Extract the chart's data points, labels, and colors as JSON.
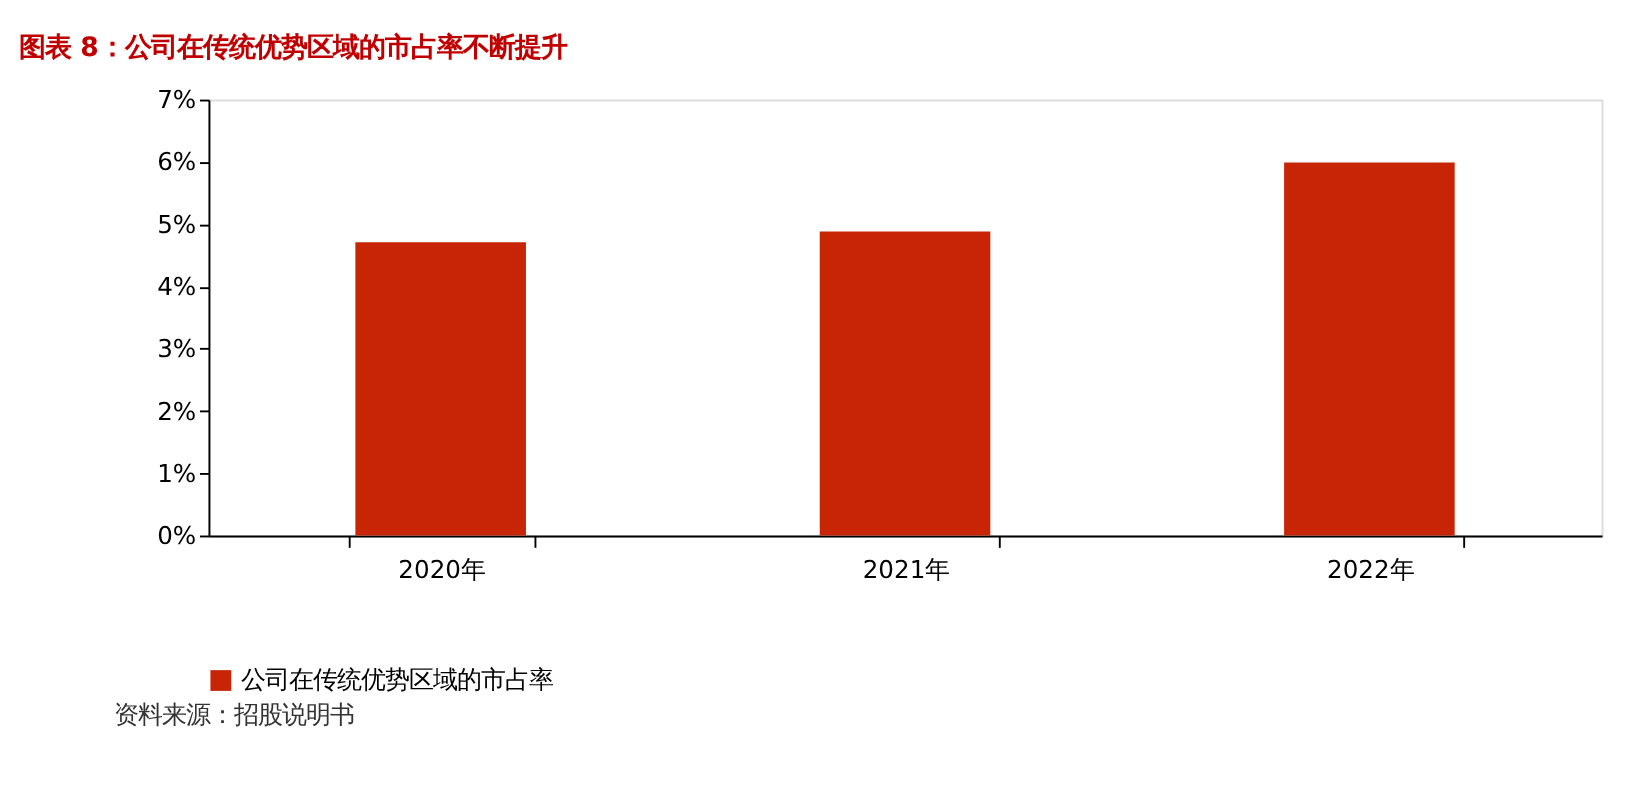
{
  "chart_data": {
    "type": "bar",
    "title": "图表 8：公司在传统优势区域的市占率不断提升",
    "categories": [
      "2020年",
      "2021年",
      "2022年"
    ],
    "series": [
      {
        "name": "公司在传统优势区域的市占率",
        "color": "#c82506",
        "values": [
          4.71,
          4.88,
          5.99
        ]
      }
    ],
    "ylim": [
      0,
      7
    ],
    "yticks": [
      {
        "value": 0,
        "label": "0%"
      },
      {
        "value": 1,
        "label": "1%"
      },
      {
        "value": 2,
        "label": "2%"
      },
      {
        "value": 3,
        "label": "3%"
      },
      {
        "value": 4,
        "label": "4%"
      },
      {
        "value": 5,
        "label": "5%"
      },
      {
        "value": 6,
        "label": "6%"
      },
      {
        "value": 7,
        "label": "7%"
      }
    ],
    "grid": false,
    "legend": "bottom",
    "annotations": [
      "资料来源：招股说明书"
    ]
  }
}
